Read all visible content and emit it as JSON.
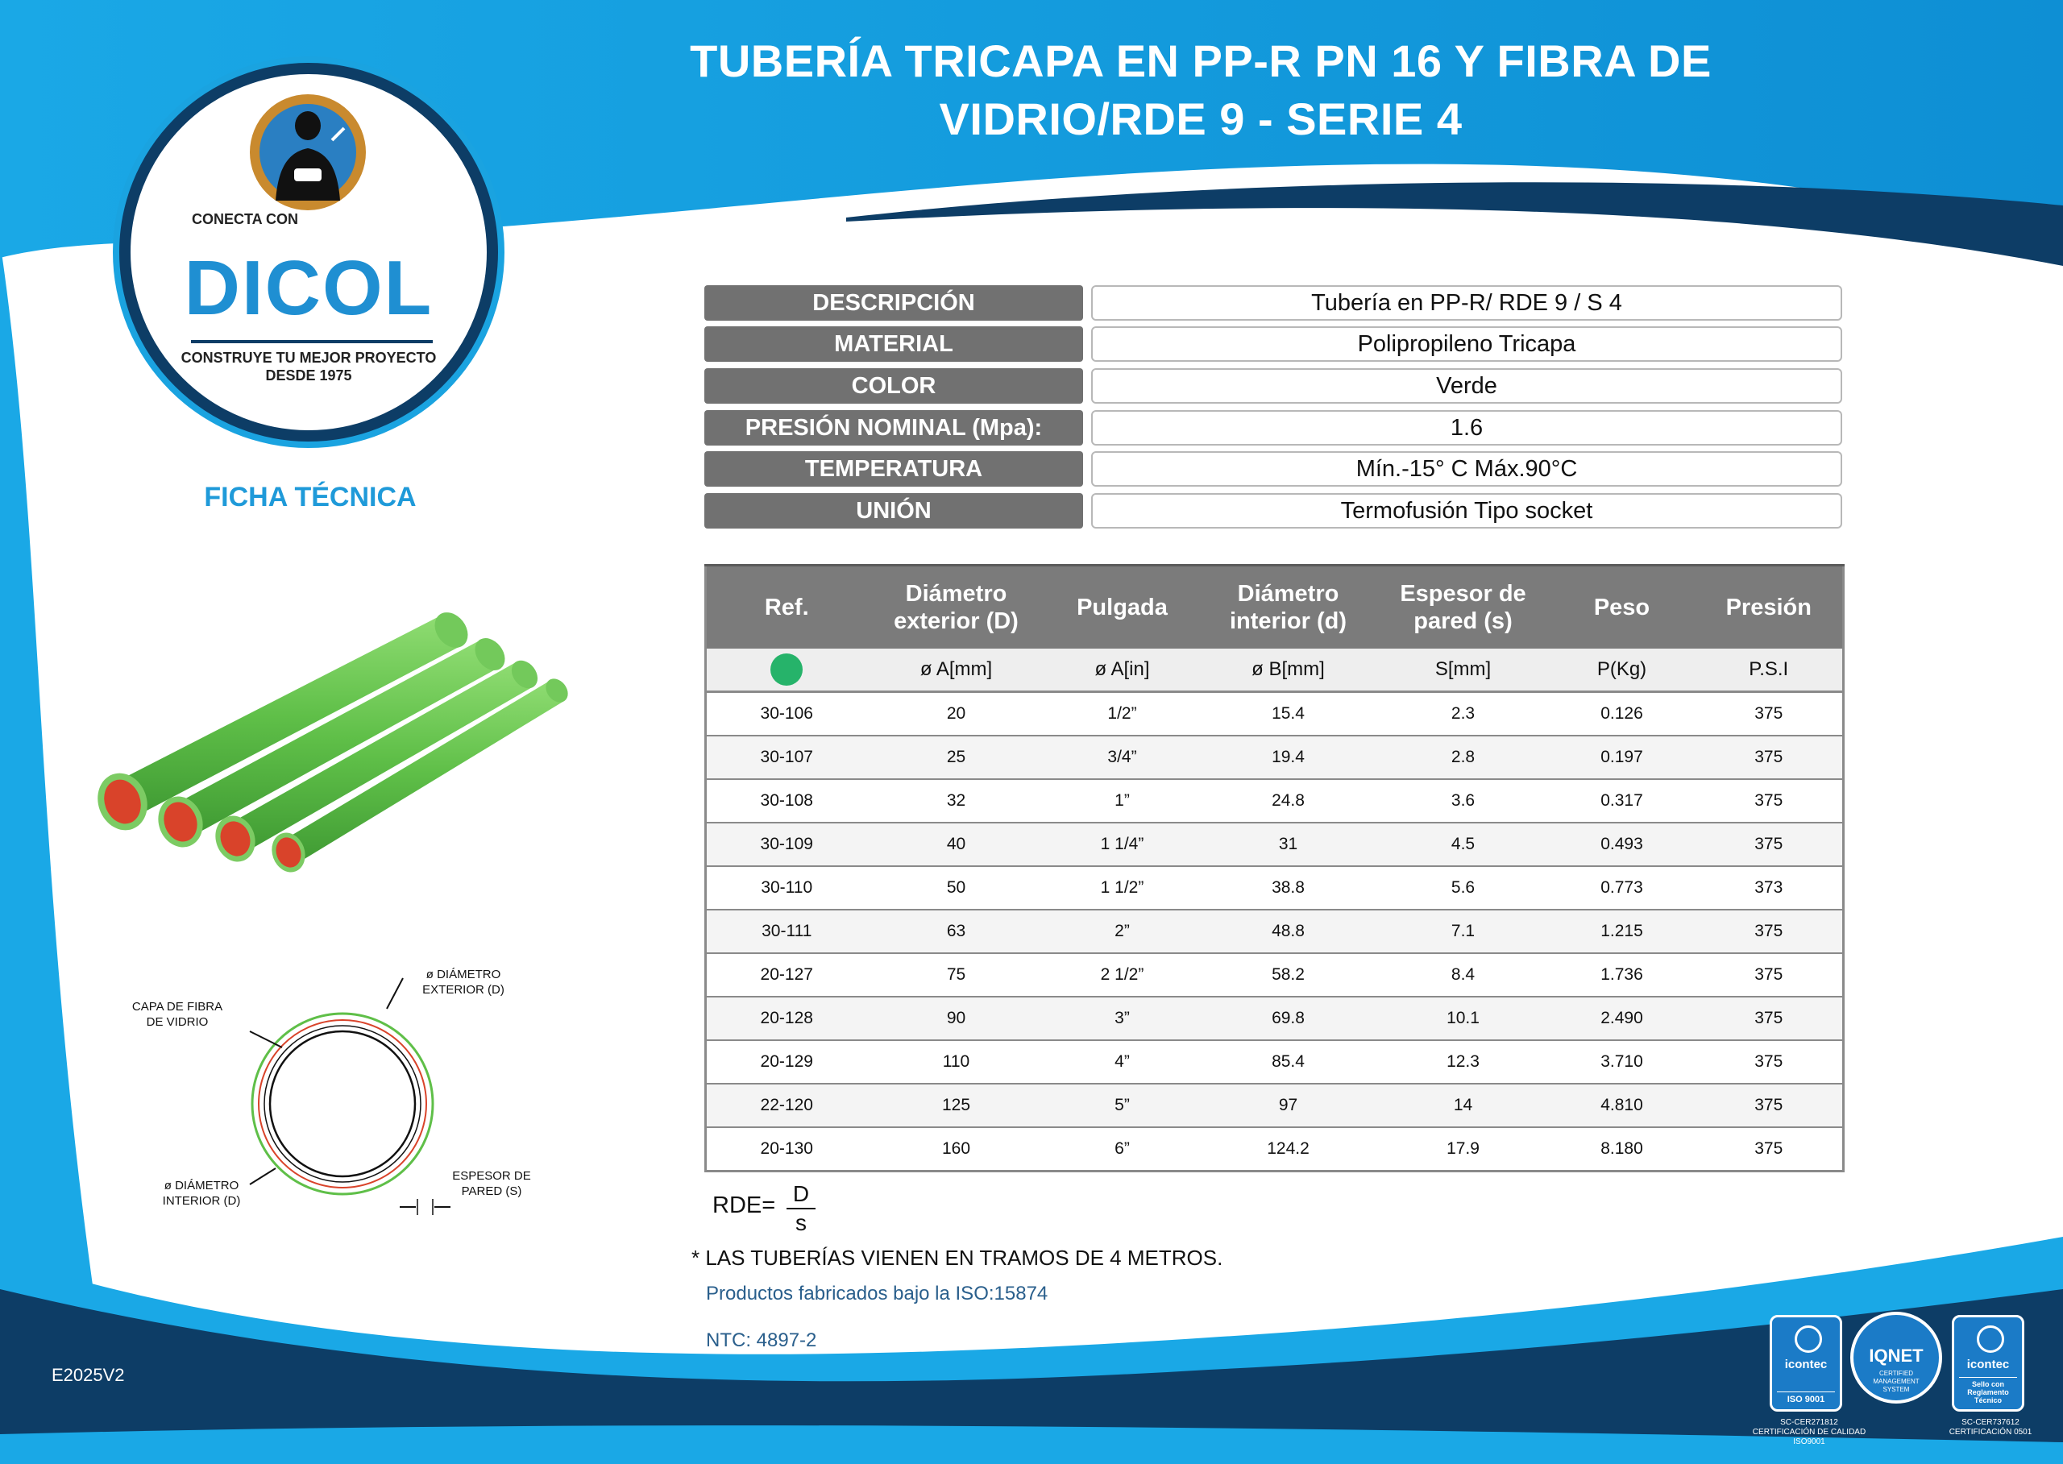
{
  "header": {
    "title_line1": "TUBERÍA TRICAPA EN PP-R PN 16 Y FIBRA DE",
    "title_line2": "VIDRIO/RDE 9 - SERIE 4"
  },
  "logo": {
    "tagline_top": "CONECTA CON",
    "brand": "DICOL",
    "tagline_bottom_1": "CONSTRUYE TU MEJOR PROYECTO",
    "tagline_bottom_2": "DESDE 1975"
  },
  "ficha_label": "FICHA TÉCNICA",
  "specs": [
    {
      "label": "DESCRIPCIÓN",
      "value": "Tubería en PP-R/ RDE 9 / S 4"
    },
    {
      "label": "MATERIAL",
      "value": "Polipropileno Tricapa"
    },
    {
      "label": "COLOR",
      "value": "Verde"
    },
    {
      "label": "PRESIÓN NOMINAL (Mpa):",
      "value": "1.6"
    },
    {
      "label": "TEMPERATURA",
      "value": "Mín.-15° C Máx.90°C"
    },
    {
      "label": "UNIÓN",
      "value": "Termofusión Tipo socket"
    }
  ],
  "table": {
    "headers": [
      "Ref.",
      "Diámetro exterior (D)",
      "Pulgada",
      "Diámetro interior (d)",
      "Espesor de pared (s)",
      "Peso",
      "Presión"
    ],
    "units": [
      "",
      "ø A[mm]",
      "ø A[in]",
      "ø B[mm]",
      "S[mm]",
      "P(Kg)",
      "P.S.I"
    ],
    "rows": [
      [
        "30-106",
        "20",
        "1/2”",
        "15.4",
        "2.3",
        "0.126",
        "375"
      ],
      [
        "30-107",
        "25",
        "3/4”",
        "19.4",
        "2.8",
        "0.197",
        "375"
      ],
      [
        "30-108",
        "32",
        "1”",
        "24.8",
        "3.6",
        "0.317",
        "375"
      ],
      [
        "30-109",
        "40",
        "1 1/4”",
        "31",
        "4.5",
        "0.493",
        "375"
      ],
      [
        "30-110",
        "50",
        "1 1/2”",
        "38.8",
        "5.6",
        "0.773",
        "373"
      ],
      [
        "30-111",
        "63",
        "2”",
        "48.8",
        "7.1",
        "1.215",
        "375"
      ],
      [
        "20-127",
        "75",
        "2 1/2”",
        "58.2",
        "8.4",
        "1.736",
        "375"
      ],
      [
        "20-128",
        "90",
        "3”",
        "69.8",
        "10.1",
        "2.490",
        "375"
      ],
      [
        "20-129",
        "110",
        "4”",
        "85.4",
        "12.3",
        "3.710",
        "375"
      ],
      [
        "22-120",
        "125",
        "5”",
        "97",
        "14",
        "4.810",
        "375"
      ],
      [
        "20-130",
        "160",
        "6”",
        "124.2",
        "17.9",
        "8.180",
        "375"
      ]
    ]
  },
  "diagram": {
    "label_fibra_1": "CAPA DE FIBRA",
    "label_fibra_2": "DE VIDRIO",
    "label_ext_1": "ø DIÁMETRO",
    "label_ext_2": "EXTERIOR (D)",
    "label_int_1": "ø DIÁMETRO",
    "label_int_2": "INTERIOR (D)",
    "label_esp_1": "ESPESOR DE",
    "label_esp_2": "PARED (S)"
  },
  "formula": {
    "prefix": "RDE=",
    "numerator": "D",
    "denominator": "s"
  },
  "footer": {
    "note": "* LAS TUBERÍAS VIENEN EN TRAMOS DE 4 METROS.",
    "iso": "Productos fabricados bajo la ISO:15874",
    "ntc": "NTC: 4897-2",
    "code": "E2025V2"
  },
  "certs": {
    "icontec1_name": "icontec",
    "icontec1_sub": "ISO 9001",
    "icontec1_code_1": "SC-CER271812",
    "icontec1_code_2": "CERTIFICACIÓN DE CALIDAD",
    "icontec1_code_3": "ISO9001",
    "iqnet_name": "IQNET",
    "iqnet_sub": "CERTIFIED MANAGEMENT SYSTEM",
    "icontec2_name": "icontec",
    "icontec2_sub": "Sello con Reglamento Técnico",
    "icontec2_code_1": "SC-CER737612",
    "icontec2_code_2": "CERTIFICACIÓN 0501"
  },
  "colors": {
    "brand_blue": "#1aa3e0",
    "navy": "#0d3d66",
    "label_gray": "#717171",
    "pipe_green": "#63c34f",
    "pipe_inner": "#d9432a"
  }
}
